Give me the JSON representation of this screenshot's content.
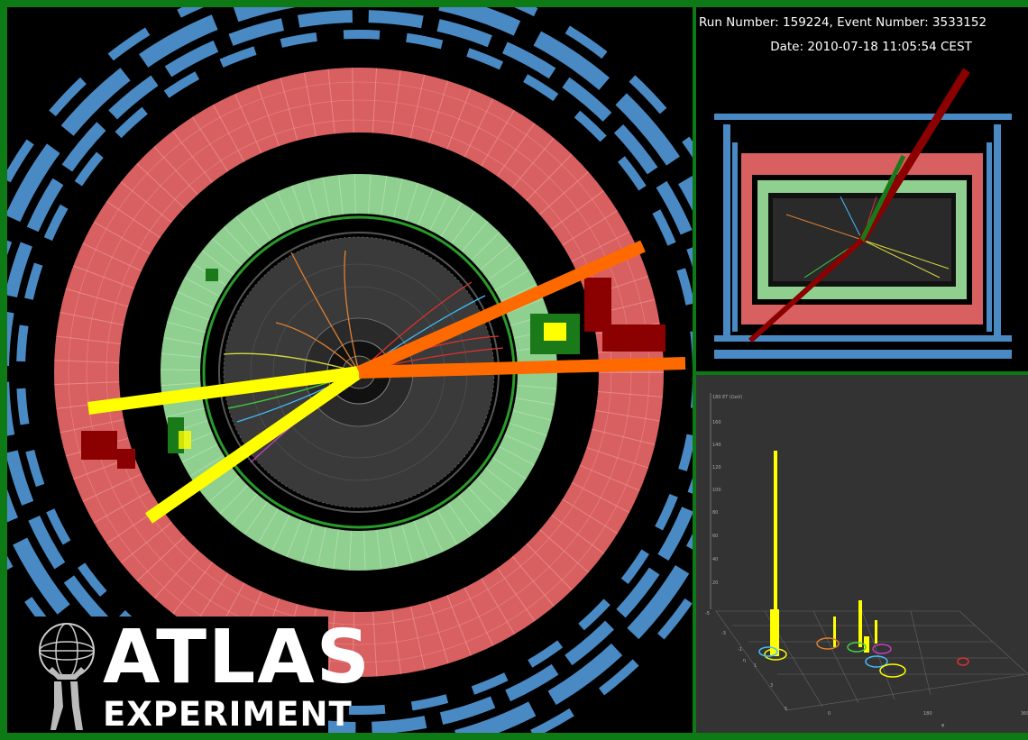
{
  "event_info": {
    "run_event": "Run Number: 159224, Event Number: 3533152",
    "date": "Date: 2010-07-18 11:05:54 CEST"
  },
  "logo": {
    "word": "ATLAS",
    "subword": "EXPERIMENT"
  },
  "lego_plot": {
    "z_axis_label": "180 ET (GeV)",
    "z_ticks": [
      "160",
      "140",
      "120",
      "100",
      "80",
      "60",
      "40",
      "20"
    ],
    "eta_label": "η",
    "eta_ticks": [
      "-5",
      "-3",
      "-1",
      "1",
      "3",
      "5"
    ],
    "phi_label": "φ",
    "phi_ticks": [
      "0",
      "180",
      "360"
    ]
  },
  "colors": {
    "frame": "#0e7a16",
    "calorimeter_outer": "#d96060",
    "calorimeter_inner": "#8fcf8f",
    "muon_chambers": "#4a8ac4",
    "jet_yellow": "#ffff00",
    "jet_orange": "#ff6a00",
    "energy_dark_red": "#8b0000"
  }
}
